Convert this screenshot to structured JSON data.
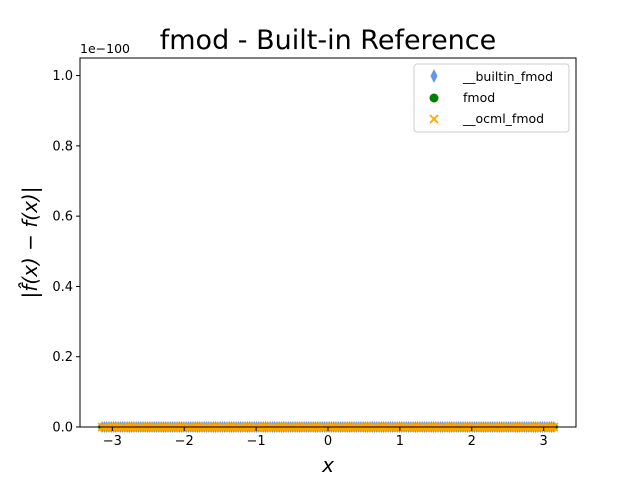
{
  "chart_data": {
    "type": "scatter",
    "title": "fmod - Built-in Reference",
    "xlabel": "x",
    "ylabel": "|f̂(x) − f(x)|",
    "y_offset_label": "1e−100",
    "xlim": [
      -3.45,
      3.45
    ],
    "ylim": [
      0,
      1.05
    ],
    "xticks": [
      -3,
      -2,
      -1,
      0,
      1,
      2,
      3
    ],
    "xtick_labels": [
      "−3",
      "−2",
      "−1",
      "0",
      "1",
      "2",
      "3"
    ],
    "yticks": [
      0.0,
      0.2,
      0.4,
      0.6,
      0.8,
      1.0
    ],
    "ytick_labels": [
      "0.0",
      "0.2",
      "0.4",
      "0.6",
      "0.8",
      "1.0"
    ],
    "x_range": [
      -3.14159,
      3.14159
    ],
    "num_points": 200,
    "legend_position": "top-right",
    "series": [
      {
        "name": "__builtin_fmod",
        "marker": "thin-diamond",
        "color": "#6495ED",
        "y_value": 0
      },
      {
        "name": "fmod",
        "marker": "circle",
        "color": "#008000",
        "y_value": 0
      },
      {
        "name": "__ocml_fmod",
        "marker": "x",
        "color": "#FFA500",
        "y_value": 0
      }
    ]
  }
}
